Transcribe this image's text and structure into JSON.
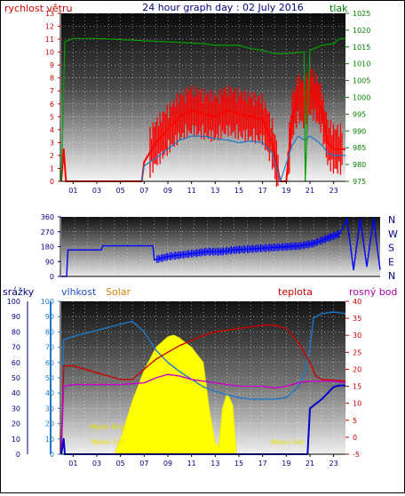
{
  "title": "24 hour graph day : 02 July 2016",
  "colors": {
    "wind": "#ff0000",
    "wind_avg": "#1e78c8",
    "pressure": "#00a000",
    "direction": "#0000ff",
    "rain": "#0000cc",
    "humidity": "#1e78c8",
    "solar": "#ffff00",
    "temperature": "#cc0000",
    "dewpoint": "#cc00cc",
    "label_red": "#cc0000",
    "label_green": "#008000",
    "label_blue": "#1e50c8",
    "label_orange": "#e08000",
    "label_magenta": "#b400b4",
    "label_navy": "#000080"
  },
  "chart_data": [
    {
      "type": "line",
      "title": "24 hour graph day : 02 July 2016",
      "ylabel_left": "rychlost větru",
      "ylabel_right": "tlak",
      "xticks": [
        "01",
        "03",
        "05",
        "07",
        "09",
        "11",
        "13",
        "15",
        "17",
        "19",
        "21",
        "23"
      ],
      "yticks_left": [
        "0",
        "1",
        "2",
        "3",
        "4",
        "5",
        "6",
        "7",
        "8",
        "9",
        "10",
        "11",
        "12",
        "13"
      ],
      "yticks_right": [
        "975",
        "980",
        "985",
        "990",
        "995",
        "1000",
        "1005",
        "1010",
        "1015",
        "1020",
        "1025"
      ],
      "ylim_left": [
        0,
        13
      ],
      "ylim_right": [
        975,
        1025
      ],
      "series": [
        {
          "key": "gust",
          "color_key": "wind",
          "x": [
            0,
            0.2,
            0.4,
            6.8,
            7.0,
            8.0,
            9.0,
            10.0,
            11.0,
            12.0,
            13.0,
            14.0,
            15.0,
            16.0,
            17.0,
            17.8,
            18.5,
            19.0,
            19.5,
            20.0,
            20.5,
            21.0,
            21.5,
            22.0,
            22.5,
            23.0,
            23.5,
            24.0
          ],
          "y": [
            0,
            2.5,
            0,
            0,
            1.5,
            3.0,
            4.0,
            5.0,
            5.5,
            5.2,
            5.0,
            5.5,
            5.2,
            5.0,
            4.8,
            3.0,
            0,
            0,
            5.0,
            6.5,
            6.0,
            7.0,
            6.5,
            5.5,
            3.0,
            2.5,
            2.5,
            2.5
          ]
        },
        {
          "key": "average",
          "color_key": "wind_avg",
          "x": [
            6.8,
            7.0,
            8.0,
            9.0,
            10.0,
            11.0,
            12.0,
            13.0,
            14.0,
            15.0,
            16.0,
            17.0,
            17.8,
            18.5,
            19.5,
            20.0,
            20.5,
            21.0,
            21.5,
            22.0,
            22.5,
            23.0,
            24.0
          ],
          "y": [
            0,
            1.2,
            1.8,
            2.5,
            3.2,
            3.5,
            3.5,
            3.3,
            3.2,
            3.0,
            3.1,
            3.0,
            2.2,
            0,
            2.8,
            3.5,
            3.2,
            3.5,
            3.2,
            2.8,
            2.2,
            2.0,
            2.0
          ]
        },
        {
          "key": "pressure",
          "color_key": "pressure",
          "axis": "right",
          "x": [
            0,
            0.3,
            1,
            3,
            6,
            12,
            13,
            15,
            16,
            17,
            18,
            19,
            20.5,
            20.6,
            21,
            22,
            23,
            23.5,
            24
          ],
          "y": [
            975,
            1016.5,
            1017.5,
            1017.5,
            1017,
            1016,
            1015.5,
            1015.5,
            1014.5,
            1014,
            1013,
            1013,
            1013.5,
            975,
            1014,
            1015.5,
            1016,
            1017.5,
            1017.5
          ]
        }
      ]
    },
    {
      "type": "line",
      "yticks_left": [
        "0",
        "90",
        "180",
        "270",
        "360"
      ],
      "yticks_right": [
        "N",
        "W",
        "S",
        "E",
        "N"
      ],
      "ylim": [
        0,
        360
      ],
      "series": [
        {
          "key": "direction",
          "color_key": "direction",
          "x": [
            0,
            0.4,
            0.5,
            3,
            3.1,
            6.9,
            7.0,
            8,
            9,
            10,
            11,
            12,
            13,
            14,
            15,
            16,
            17,
            18,
            19,
            20,
            21,
            21.5,
            22,
            22.5,
            23,
            23.5,
            24
          ],
          "y": [
            0,
            0,
            160,
            160,
            185,
            185,
            100,
            120,
            130,
            140,
            150,
            150,
            160,
            165,
            170,
            175,
            180,
            185,
            200,
            230,
            260,
            350,
            40,
            350,
            60,
            350,
            40
          ]
        }
      ]
    },
    {
      "type": "line",
      "title_labels": {
        "rain": "srážky",
        "humidity": "vlhkost",
        "solar": "Solar",
        "temperature": "teplota",
        "dewpoint": "rosný bod"
      },
      "annotations": [
        "Moon Set",
        "Moon Set",
        "Moon Rise"
      ],
      "xticks": [
        "01",
        "03",
        "05",
        "07",
        "09",
        "11",
        "13",
        "15",
        "17",
        "19",
        "21",
        "23"
      ],
      "yticks_left": [
        "0",
        "10",
        "20",
        "30",
        "40",
        "50",
        "60",
        "70",
        "80",
        "90",
        "100"
      ],
      "yticks_right": [
        "-5",
        "0",
        "5",
        "10",
        "15",
        "20",
        "25",
        "30",
        "35",
        "40"
      ],
      "ylim_left": [
        0,
        100
      ],
      "ylim_right": [
        -5,
        40
      ],
      "series": [
        {
          "key": "solar",
          "color_key": "solar",
          "x": [
            4.5,
            5,
            6,
            7,
            8,
            9,
            9.5,
            10,
            11,
            12,
            12.5,
            13,
            13.3,
            13.6,
            14,
            14.5,
            14.8
          ],
          "y": [
            0,
            10,
            35,
            55,
            70,
            77,
            78,
            76,
            70,
            60,
            30,
            8,
            5,
            30,
            40,
            32,
            0
          ]
        },
        {
          "key": "humidity",
          "color_key": "humidity",
          "x": [
            0,
            0.2,
            1,
            3,
            6,
            7,
            8,
            9,
            10,
            11,
            12,
            13,
            14,
            15,
            16,
            17,
            18,
            19,
            20,
            20.5,
            21,
            21.3,
            21.5,
            22,
            23,
            24
          ],
          "y": [
            0,
            75,
            77,
            81,
            87,
            80,
            68,
            60,
            54,
            49,
            44,
            41,
            39,
            37,
            36,
            36,
            36,
            37,
            44,
            52,
            70,
            89,
            90,
            92,
            93,
            92
          ]
        },
        {
          "key": "temperature",
          "color_key": "temperature",
          "axis": "right",
          "x": [
            0,
            0.2,
            1,
            3,
            5,
            6,
            7,
            8,
            9,
            10,
            11,
            12,
            13,
            14,
            15,
            16,
            17,
            18,
            19,
            20,
            21,
            21.5,
            22,
            23,
            24
          ],
          "y": [
            -5,
            21,
            21,
            19,
            17,
            17,
            20,
            23,
            25,
            27,
            28.5,
            30,
            31,
            31.5,
            32,
            32.5,
            33,
            33,
            32,
            28,
            22,
            18,
            17,
            16.8,
            16.5
          ]
        },
        {
          "key": "dewpoint",
          "color_key": "dewpoint",
          "axis": "right",
          "x": [
            0,
            0.2,
            1,
            5,
            7,
            8,
            9,
            10,
            11,
            12,
            13,
            14,
            15,
            16,
            17,
            18,
            19,
            20,
            21,
            22,
            23,
            24
          ],
          "y": [
            -5,
            15,
            15.5,
            15.5,
            16,
            17.5,
            18.5,
            18,
            17,
            16.5,
            16,
            15.5,
            15,
            15,
            15,
            14.5,
            15,
            16,
            16.5,
            16.5,
            16.5,
            16
          ]
        },
        {
          "key": "rain",
          "color_key": "rain",
          "x": [
            0,
            0.2,
            0.3,
            20.8,
            21,
            21.5,
            22,
            22.5,
            23,
            23.5,
            24
          ],
          "y": [
            0,
            10,
            0,
            0,
            30,
            33,
            36,
            40,
            44,
            45,
            45
          ]
        }
      ]
    }
  ]
}
